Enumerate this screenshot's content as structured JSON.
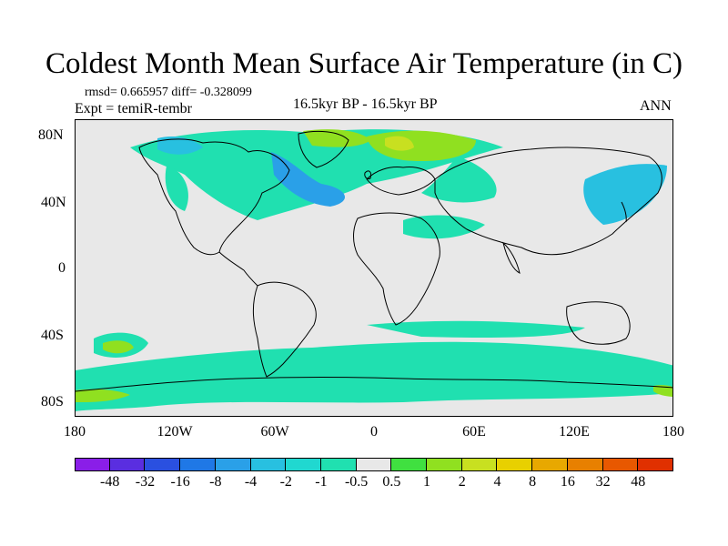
{
  "title": "Coldest Month Mean Surface Air Temperature (in C)",
  "stats": "rmsd= 0.665957  diff= -0.328099",
  "experiment": "Expt = temiR-tembr",
  "center_label": "16.5kyr BP - 16.5kyr BP",
  "right_label": "ANN",
  "y_ticks": [
    "80N",
    "40N",
    "0",
    "40S",
    "80S"
  ],
  "x_ticks": [
    "180",
    "120W",
    "60W",
    "0",
    "60E",
    "120E",
    "180"
  ],
  "colorbar": {
    "colors": [
      "#8a1ee8",
      "#5a2ee0",
      "#2a50e0",
      "#1f78e6",
      "#2aa0e8",
      "#28c0e0",
      "#20d8d0",
      "#20e0b0",
      "#e8e8e8",
      "#40e040",
      "#90e020",
      "#c8e020",
      "#e8d000",
      "#e8a800",
      "#e88000",
      "#e85800",
      "#e03000"
    ],
    "labels": [
      "-48",
      "-32",
      "-16",
      "-8",
      "-4",
      "-2",
      "-1",
      "-0.5",
      "0.5",
      "1",
      "2",
      "4",
      "8",
      "16",
      "32",
      "48"
    ]
  }
}
